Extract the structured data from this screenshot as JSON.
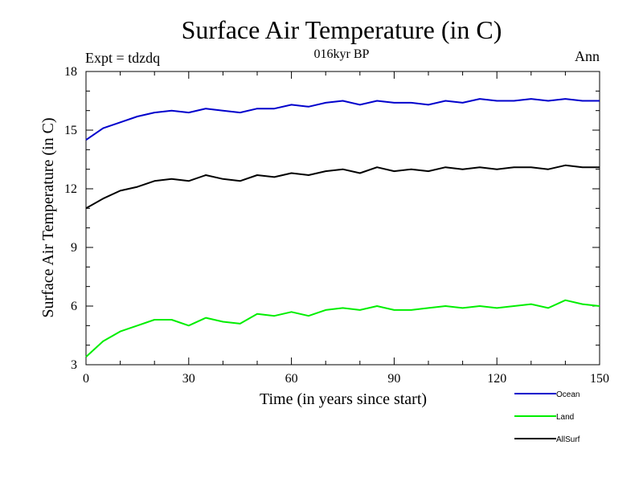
{
  "chart_data": {
    "type": "line",
    "title": "Surface Air Temperature (in C)",
    "subtitle": "016kyr BP",
    "experiment_label": "Expt = tdzdq",
    "period_label": "Ann",
    "xlabel": "Time (in years since start)",
    "ylabel": "Surface Air Temperature (in C)",
    "xlim": [
      0,
      150
    ],
    "ylim": [
      3,
      18
    ],
    "xticks": [
      0,
      30,
      60,
      90,
      120,
      150
    ],
    "xtick_labels": [
      "0",
      "30",
      "60",
      "90",
      "120",
      "150"
    ],
    "yticks": [
      3,
      6,
      9,
      12,
      15,
      18
    ],
    "ytick_labels": [
      "3",
      "6",
      "9",
      "12",
      "15",
      "18"
    ],
    "x": [
      0,
      5,
      10,
      15,
      20,
      25,
      30,
      35,
      40,
      45,
      50,
      55,
      60,
      65,
      70,
      75,
      80,
      85,
      90,
      95,
      100,
      105,
      110,
      115,
      120,
      125,
      130,
      135,
      140,
      145,
      150
    ],
    "series": [
      {
        "name": "Ocean",
        "color": "#0000cc",
        "values": [
          14.5,
          15.1,
          15.4,
          15.7,
          15.9,
          16.0,
          15.9,
          16.1,
          16.0,
          15.9,
          16.1,
          16.1,
          16.3,
          16.2,
          16.4,
          16.5,
          16.3,
          16.5,
          16.4,
          16.4,
          16.3,
          16.5,
          16.4,
          16.6,
          16.5,
          16.5,
          16.6,
          16.5,
          16.6,
          16.5,
          16.5
        ]
      },
      {
        "name": "Land",
        "color": "#00ee00",
        "values": [
          3.4,
          4.2,
          4.7,
          5.0,
          5.3,
          5.3,
          5.0,
          5.4,
          5.2,
          5.1,
          5.6,
          5.5,
          5.7,
          5.5,
          5.8,
          5.9,
          5.8,
          6.0,
          5.8,
          5.8,
          5.9,
          6.0,
          5.9,
          6.0,
          5.9,
          6.0,
          6.1,
          5.9,
          6.3,
          6.1,
          6.0
        ]
      },
      {
        "name": "AllSurf",
        "color": "#000000",
        "values": [
          11.0,
          11.5,
          11.9,
          12.1,
          12.4,
          12.5,
          12.4,
          12.7,
          12.5,
          12.4,
          12.7,
          12.6,
          12.8,
          12.7,
          12.9,
          13.0,
          12.8,
          13.1,
          12.9,
          13.0,
          12.9,
          13.1,
          13.0,
          13.1,
          13.0,
          13.1,
          13.1,
          13.0,
          13.2,
          13.1,
          13.1
        ]
      }
    ],
    "legend_position": "bottom-right"
  }
}
